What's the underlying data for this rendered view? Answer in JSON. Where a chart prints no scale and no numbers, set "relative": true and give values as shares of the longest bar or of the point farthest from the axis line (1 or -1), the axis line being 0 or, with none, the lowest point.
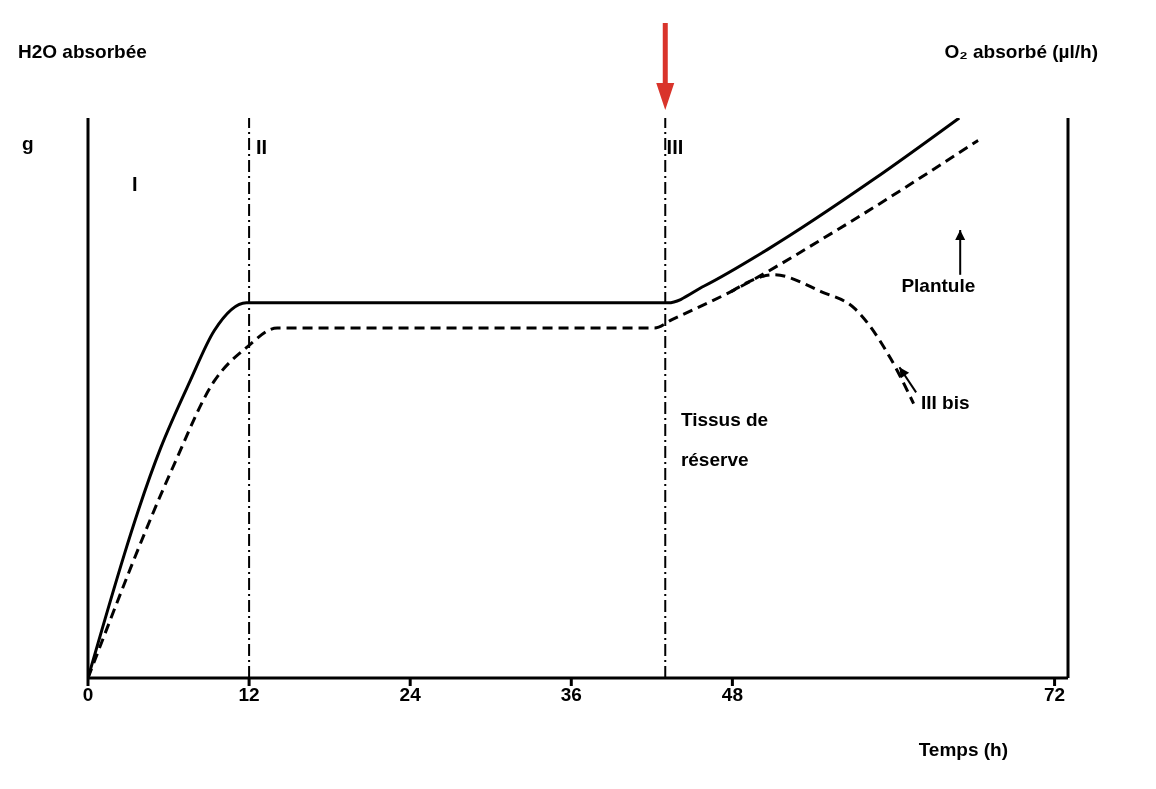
{
  "chart_data": {
    "type": "line",
    "relative": true,
    "xlabel": "Temps (h)",
    "ylabel": "H2O absorbée",
    "y2label": "O₂ absorbé (µl/h)",
    "xlim": [
      0,
      73
    ],
    "xticks": [
      0,
      12,
      24,
      36,
      48,
      72
    ],
    "tick_labels": "x",
    "series": [
      {
        "color": "#000000",
        "line_style": "solid",
        "x": [
          0,
          5.4,
          7.6,
          9.4,
          11.8,
          40.1,
          43.2,
          45.9,
          50.6,
          58.5,
          64.9
        ],
        "values": [
          0,
          0.41,
          0.53,
          0.62,
          0.67,
          0.67,
          0.67,
          0.7,
          0.765,
          0.89,
          1
        ]
      },
      {
        "color": "#000000",
        "line_style": "dashed",
        "x": [
          0,
          6.3,
          9.4,
          11.8,
          14.1,
          42.2,
          43.5,
          47.9,
          55.8,
          66.3
        ],
        "values": [
          0,
          0.375,
          0.53,
          0.59,
          0.625,
          0.625,
          0.64,
          0.69,
          0.8,
          0.96
        ]
      },
      {
        "color": "#000000",
        "line_style": "dashed",
        "x": [
          47.9,
          51.1,
          54.6,
          57.1,
          59.8,
          61.5
        ],
        "values": [
          0.69,
          0.72,
          0.69,
          0.66,
          0.57,
          0.49
        ]
      }
    ],
    "ref_lines": [
      {
        "axis": "x",
        "value": 12,
        "label": "II",
        "line_style": "dashed",
        "color": "#000000"
      },
      {
        "axis": "x",
        "value": 43,
        "label": "III",
        "line_style": "dashed",
        "color": "#000000"
      }
    ],
    "annotations": [
      "g",
      "I",
      "Plantule",
      "Tissus de réserve",
      "III bis"
    ]
  }
}
